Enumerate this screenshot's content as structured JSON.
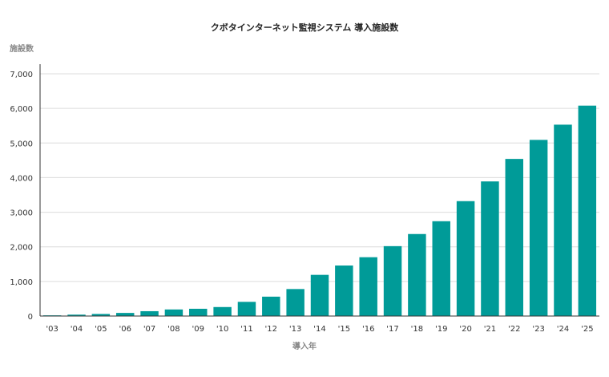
{
  "chart_data": {
    "type": "bar",
    "title": "クボタインターネット監視システム 導入施設数",
    "ylabel": "施設数",
    "xlabel": "導入年",
    "categories": [
      "'03",
      "'04",
      "'05",
      "'06",
      "'07",
      "'08",
      "'09",
      "'10",
      "'11",
      "'12",
      "'13",
      "'14",
      "'15",
      "'16",
      "'17",
      "'18",
      "'19",
      "'20",
      "'21",
      "'22",
      "'23",
      "'24",
      "'25"
    ],
    "values": [
      20,
      40,
      60,
      90,
      140,
      190,
      210,
      260,
      410,
      560,
      780,
      1190,
      1460,
      1700,
      2020,
      2370,
      2740,
      3320,
      3890,
      4540,
      5090,
      5530,
      6080
    ],
    "yticks": [
      "0",
      "1,000",
      "2,000",
      "3,000",
      "4,000",
      "5,000",
      "6,000",
      "7,000"
    ],
    "ylim": [
      0,
      7000
    ],
    "grid": true,
    "bar_color": "#009b98"
  }
}
